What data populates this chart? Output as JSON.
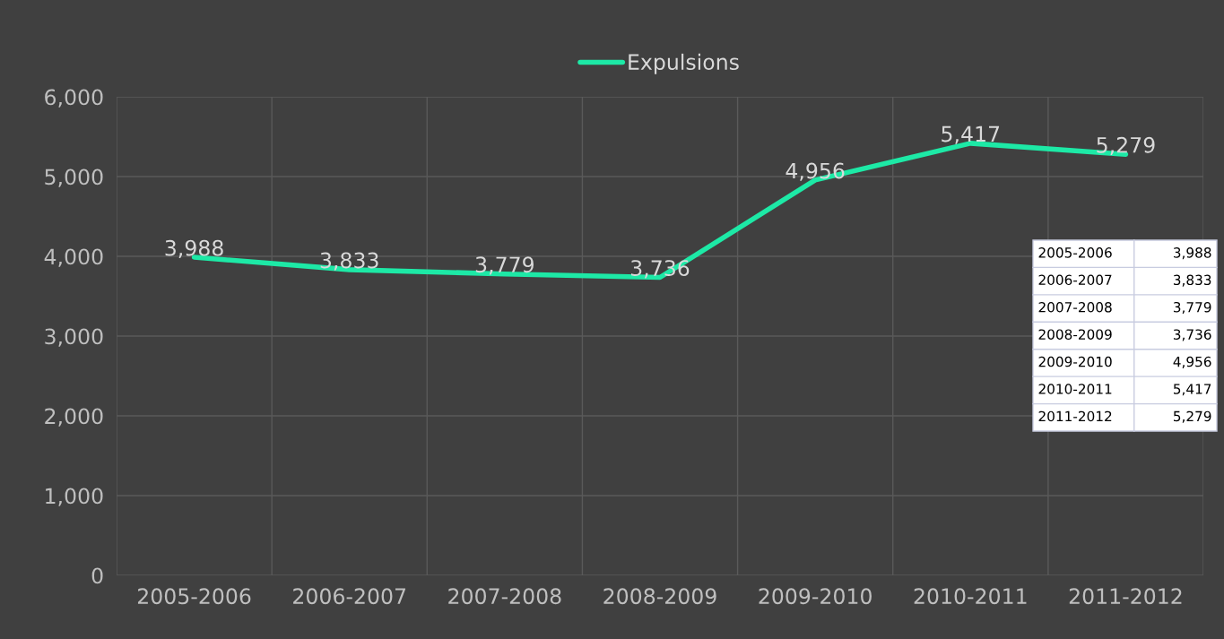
{
  "chart_data": {
    "type": "line",
    "categories": [
      "2005-2006",
      "2006-2007",
      "2007-2008",
      "2008-2009",
      "2009-2010",
      "2010-2011",
      "2011-2012"
    ],
    "series": [
      {
        "name": "Expulsions",
        "color": "#1de9a6",
        "values": [
          3988,
          3833,
          3779,
          3736,
          4956,
          5417,
          5279
        ],
        "value_labels": [
          "3,988",
          "3,833",
          "3,779",
          "3,736",
          "4,956",
          "5,417",
          "5,279"
        ]
      }
    ],
    "ylim": [
      0,
      6000
    ],
    "yticks": [
      {
        "value": 0,
        "label": "0"
      },
      {
        "value": 1000,
        "label": "1,000"
      },
      {
        "value": 2000,
        "label": "2,000"
      },
      {
        "value": 3000,
        "label": "3,000"
      },
      {
        "value": 4000,
        "label": "4,000"
      },
      {
        "value": 5000,
        "label": "5,000"
      },
      {
        "value": 6000,
        "label": "6,000"
      }
    ],
    "grid": true,
    "legend": "top",
    "marker": "none",
    "line_style": "solid"
  }
}
